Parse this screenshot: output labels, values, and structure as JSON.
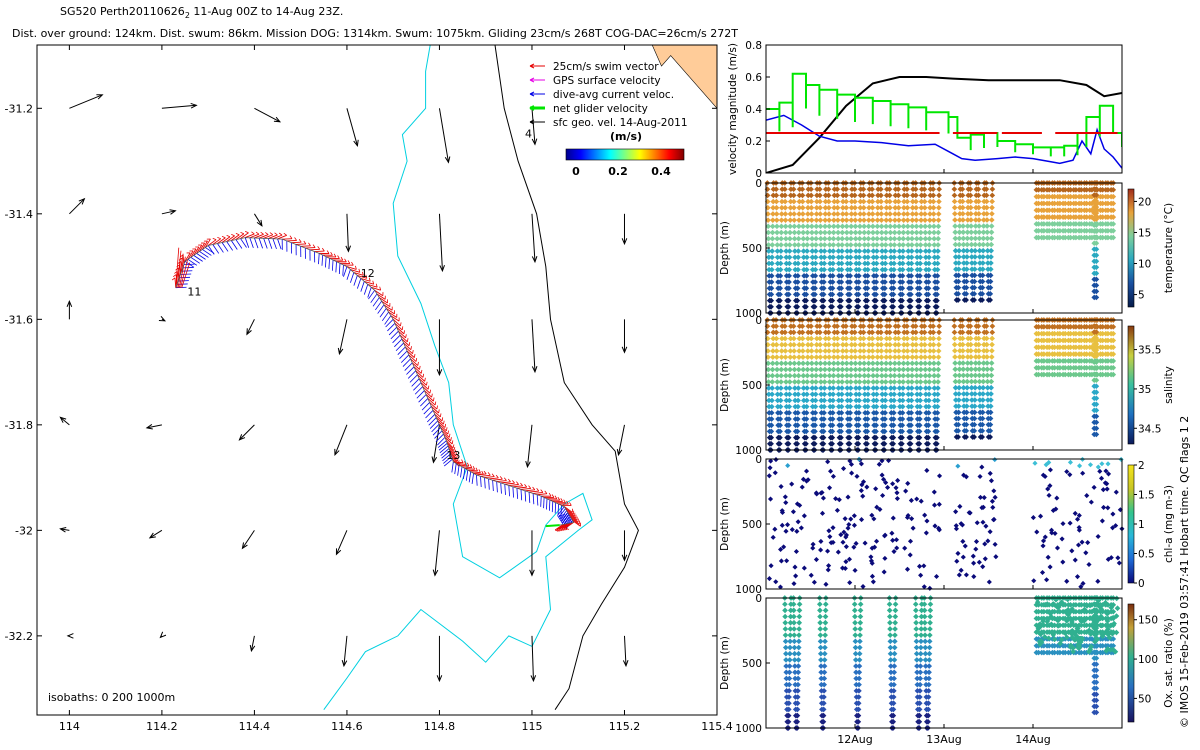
{
  "header": {
    "title": "SG520 Perth20110626",
    "title_sub": "2",
    "title_rest": " 11-Aug 00Z to 14-Aug 23Z.",
    "subtitle": "Dist. over ground: 124km. Dist. swum: 86km. Mission DOG: 1314km. Swum: 1075km. Gliding 23cm/s 268T COG-DAC=26cm/s 272T"
  },
  "side_label": "© IMOS 15-Feb-2019 03:57:41 Hobart time. QC flags 1  2",
  "colors": {
    "swim_vector": "#e60000",
    "gps_velocity": "#e600e6",
    "dive_avg": "#0000e6",
    "net_glider": "#00e600",
    "sfc_geo": "#000000",
    "isobath_200": "#00d0e0",
    "isobath_1000": "#000000",
    "land": "#ffcc99"
  },
  "chart_data": [
    {
      "type": "map",
      "x_ticks": [
        "114",
        "114.2",
        "114.4",
        "114.6",
        "114.8",
        "115",
        "115.2",
        "115.4"
      ],
      "y_ticks": [
        "-31.2",
        "-31.4",
        "-31.6",
        "-31.8",
        "-32",
        "-32.2"
      ],
      "xlim": [
        113.93,
        115.4
      ],
      "ylim": [
        -32.35,
        -31.08
      ],
      "legend": {
        "placement": "top-right",
        "entries": [
          "25cm/s swim vector",
          "GPS surface velocity",
          "dive-avg current veloc.",
          "net glider velocity",
          "sfc geo. vel. 14-Aug-2011"
        ]
      },
      "colorbar": {
        "label": "(m/s)",
        "ticks": [
          "0",
          "0.2",
          "0.4"
        ],
        "range": [
          0,
          0.5
        ]
      },
      "isobath_note": "isobaths: 0   200  1000m",
      "day_labels": [
        {
          "text": "11",
          "lon": 114.255,
          "lat": -31.555
        },
        {
          "text": "12",
          "lon": 114.63,
          "lat": -31.52
        },
        {
          "text": "13",
          "lon": 114.815,
          "lat": -31.865
        },
        {
          "text": "4",
          "lon": 114.985,
          "lat": -31.255
        }
      ],
      "track": [
        [
          114.23,
          -31.54
        ],
        [
          114.25,
          -31.49
        ],
        [
          114.3,
          -31.46
        ],
        [
          114.38,
          -31.445
        ],
        [
          114.46,
          -31.448
        ],
        [
          114.54,
          -31.475
        ],
        [
          114.6,
          -31.5
        ],
        [
          114.66,
          -31.545
        ],
        [
          114.7,
          -31.6
        ],
        [
          114.73,
          -31.66
        ],
        [
          114.76,
          -31.72
        ],
        [
          114.79,
          -31.78
        ],
        [
          114.815,
          -31.83
        ],
        [
          114.83,
          -31.87
        ],
        [
          114.88,
          -31.895
        ],
        [
          114.95,
          -31.915
        ],
        [
          115.02,
          -31.935
        ],
        [
          115.07,
          -31.955
        ],
        [
          115.09,
          -31.985
        ],
        [
          115.06,
          -31.99
        ]
      ],
      "geo_vectors": [
        {
          "lon": 114.0,
          "lat": -31.2,
          "u": 0.22,
          "v": 0.09
        },
        {
          "lon": 114.2,
          "lat": -31.2,
          "u": 0.23,
          "v": 0.02
        },
        {
          "lon": 114.4,
          "lat": -31.2,
          "u": 0.17,
          "v": -0.09
        },
        {
          "lon": 114.6,
          "lat": -31.2,
          "u": 0.07,
          "v": -0.25
        },
        {
          "lon": 114.8,
          "lat": -31.2,
          "u": 0.06,
          "v": -0.36
        },
        {
          "lon": 115.0,
          "lat": -31.2,
          "u": 0.02,
          "v": -0.24
        },
        {
          "lon": 114.0,
          "lat": -31.4,
          "u": 0.1,
          "v": 0.1
        },
        {
          "lon": 114.2,
          "lat": -31.4,
          "u": 0.09,
          "v": 0.02
        },
        {
          "lon": 114.4,
          "lat": -31.4,
          "u": 0.05,
          "v": -0.08
        },
        {
          "lon": 114.6,
          "lat": -31.4,
          "u": 0.01,
          "v": -0.25
        },
        {
          "lon": 114.8,
          "lat": -31.4,
          "u": 0.02,
          "v": -0.38
        },
        {
          "lon": 115.0,
          "lat": -31.4,
          "u": 0.02,
          "v": -0.32
        },
        {
          "lon": 115.2,
          "lat": -31.4,
          "u": 0.0,
          "v": -0.2
        },
        {
          "lon": 114.0,
          "lat": -31.6,
          "u": 0.0,
          "v": 0.12
        },
        {
          "lon": 114.2,
          "lat": -31.6,
          "u": 0.02,
          "v": -0.01
        },
        {
          "lon": 114.4,
          "lat": -31.6,
          "u": -0.05,
          "v": -0.1
        },
        {
          "lon": 114.6,
          "lat": -31.6,
          "u": -0.05,
          "v": -0.23
        },
        {
          "lon": 114.8,
          "lat": -31.6,
          "u": 0.0,
          "v": -0.37
        },
        {
          "lon": 115.0,
          "lat": -31.6,
          "u": 0.02,
          "v": -0.35
        },
        {
          "lon": 115.2,
          "lat": -31.6,
          "u": 0.0,
          "v": -0.22
        },
        {
          "lon": 114.0,
          "lat": -31.8,
          "u": -0.06,
          "v": 0.05
        },
        {
          "lon": 114.2,
          "lat": -31.8,
          "u": -0.1,
          "v": -0.02
        },
        {
          "lon": 114.4,
          "lat": -31.8,
          "u": -0.1,
          "v": -0.1
        },
        {
          "lon": 114.6,
          "lat": -31.8,
          "u": -0.08,
          "v": -0.2
        },
        {
          "lon": 114.8,
          "lat": -31.8,
          "u": -0.04,
          "v": -0.25
        },
        {
          "lon": 115.0,
          "lat": -31.8,
          "u": -0.03,
          "v": -0.28
        },
        {
          "lon": 115.2,
          "lat": -31.8,
          "u": -0.04,
          "v": -0.2
        },
        {
          "lon": 114.0,
          "lat": -32.0,
          "u": -0.06,
          "v": 0.01
        },
        {
          "lon": 114.2,
          "lat": -32.0,
          "u": -0.08,
          "v": -0.05
        },
        {
          "lon": 114.4,
          "lat": -32.0,
          "u": -0.08,
          "v": -0.12
        },
        {
          "lon": 114.6,
          "lat": -32.0,
          "u": -0.07,
          "v": -0.16
        },
        {
          "lon": 114.8,
          "lat": -32.0,
          "u": -0.03,
          "v": -0.3
        },
        {
          "lon": 115.0,
          "lat": -32.0,
          "u": 0.0,
          "v": -0.3
        },
        {
          "lon": 115.2,
          "lat": -32.0,
          "u": 0.0,
          "v": -0.2
        },
        {
          "lon": 114.0,
          "lat": -32.2,
          "u": -0.01,
          "v": 0.0
        },
        {
          "lon": 114.2,
          "lat": -32.2,
          "u": -0.01,
          "v": -0.01
        },
        {
          "lon": 114.4,
          "lat": -32.2,
          "u": -0.02,
          "v": -0.1
        },
        {
          "lon": 114.6,
          "lat": -32.2,
          "u": -0.02,
          "v": -0.2
        },
        {
          "lon": 114.8,
          "lat": -32.2,
          "u": 0.0,
          "v": -0.3
        },
        {
          "lon": 115.0,
          "lat": -32.2,
          "u": 0.01,
          "v": -0.3
        },
        {
          "lon": 115.2,
          "lat": -32.2,
          "u": 0.01,
          "v": -0.2
        }
      ],
      "isobath_200": [
        [
          [
            114.78,
            -31.08
          ],
          [
            114.77,
            -31.13
          ],
          [
            114.77,
            -31.2
          ],
          [
            114.72,
            -31.25
          ],
          [
            114.73,
            -31.3
          ],
          [
            114.7,
            -31.38
          ],
          [
            114.71,
            -31.48
          ],
          [
            114.76,
            -31.57
          ],
          [
            114.79,
            -31.65
          ],
          [
            114.82,
            -31.72
          ],
          [
            114.83,
            -31.8
          ],
          [
            114.86,
            -31.88
          ],
          [
            114.83,
            -31.95
          ],
          [
            114.85,
            -32.05
          ],
          [
            114.93,
            -32.09
          ],
          [
            115.01,
            -32.04
          ],
          [
            115.03,
            -31.99
          ],
          [
            115.07,
            -31.95
          ],
          [
            115.11,
            -31.93
          ],
          [
            115.13,
            -31.98
          ],
          [
            115.1,
            -32.0
          ],
          [
            115.03,
            -32.05
          ],
          [
            115.04,
            -32.15
          ],
          [
            115.0,
            -32.22
          ],
          [
            114.95,
            -32.2
          ],
          [
            114.9,
            -32.25
          ],
          [
            114.85,
            -32.21
          ],
          [
            114.76,
            -32.15
          ],
          [
            114.71,
            -32.2
          ],
          [
            114.64,
            -32.23
          ],
          [
            114.6,
            -32.28
          ],
          [
            114.55,
            -32.34
          ]
        ]
      ],
      "isobath_1000": [
        [
          [
            114.92,
            -31.08
          ],
          [
            114.94,
            -31.2
          ],
          [
            114.97,
            -31.3
          ],
          [
            115.01,
            -31.4
          ],
          [
            115.03,
            -31.5
          ],
          [
            115.04,
            -31.6
          ],
          [
            115.07,
            -31.72
          ],
          [
            115.13,
            -31.8
          ],
          [
            115.18,
            -31.85
          ],
          [
            115.2,
            -31.95
          ],
          [
            115.23,
            -32.0
          ],
          [
            115.2,
            -32.07
          ],
          [
            115.15,
            -32.14
          ],
          [
            115.11,
            -32.2
          ],
          [
            115.08,
            -32.3
          ],
          [
            115.05,
            -32.34
          ]
        ]
      ],
      "isobath_0": [
        [
          [
            115.26,
            -31.08
          ],
          [
            115.28,
            -31.12
          ],
          [
            115.3,
            -31.1
          ]
        ]
      ]
    },
    {
      "type": "line",
      "ylabel": "velocity magnitude (m/s)",
      "ylim": [
        0,
        0.8
      ],
      "y_ticks": [
        "0",
        "0.2",
        "0.4",
        "0.6",
        "0.8"
      ],
      "x_ticks": [
        "12Aug",
        "13Aug",
        "14Aug"
      ],
      "xlim_days": [
        11.0,
        15.0
      ],
      "series": [
        {
          "name": "sfc geo",
          "color": "#000000",
          "x": [
            11.0,
            11.3,
            11.6,
            11.9,
            12.2,
            12.5,
            12.8,
            13.1,
            13.5,
            13.9,
            14.3,
            14.6,
            14.8,
            15.0
          ],
          "y": [
            0.0,
            0.05,
            0.22,
            0.42,
            0.56,
            0.6,
            0.6,
            0.59,
            0.58,
            0.58,
            0.58,
            0.55,
            0.48,
            0.5
          ]
        },
        {
          "name": "dive-avg",
          "color": "#0000e6",
          "x": [
            11.0,
            11.2,
            11.4,
            11.6,
            11.8,
            12.0,
            12.3,
            12.6,
            12.9,
            13.1,
            13.2,
            13.35,
            13.6,
            13.8,
            14.0,
            14.2,
            14.3,
            14.45,
            14.55,
            14.65,
            14.72,
            14.8,
            14.9,
            15.0
          ],
          "y": [
            0.33,
            0.36,
            0.3,
            0.23,
            0.2,
            0.2,
            0.19,
            0.17,
            0.18,
            0.12,
            0.09,
            0.08,
            0.09,
            0.1,
            0.09,
            0.07,
            0.06,
            0.08,
            0.2,
            0.12,
            0.27,
            0.15,
            0.1,
            0.03
          ]
        },
        {
          "name": "net glider",
          "color": "#00e600",
          "x": [
            11.0,
            11.15,
            11.3,
            11.45,
            11.6,
            11.8,
            12.0,
            12.2,
            12.4,
            12.6,
            12.8,
            13.05,
            13.15,
            13.3,
            13.45,
            13.6,
            13.8,
            14.0,
            14.2,
            14.35,
            14.5,
            14.6,
            14.75,
            14.9,
            15.0
          ],
          "y": [
            0.4,
            0.44,
            0.62,
            0.55,
            0.52,
            0.49,
            0.47,
            0.45,
            0.43,
            0.41,
            0.38,
            0.35,
            0.22,
            0.24,
            0.25,
            0.2,
            0.18,
            0.16,
            0.16,
            0.17,
            0.25,
            0.35,
            0.42,
            0.25,
            0.2
          ]
        },
        {
          "name": "swim",
          "color": "#e60000",
          "x": [
            11.0,
            14.95
          ],
          "y": [
            0.25,
            0.25
          ]
        }
      ]
    },
    {
      "type": "scatter",
      "ylabel": "Depth (m)",
      "cbar_label": "temperature (°C)",
      "cbar_ticks": [
        "5",
        "10",
        "15",
        "20"
      ],
      "cbar_range": [
        3,
        22
      ],
      "ylim": [
        0,
        1000
      ],
      "y_ticks": [
        "0",
        "500",
        "1000"
      ]
    },
    {
      "type": "scatter",
      "ylabel": "Depth (m)",
      "cbar_label": "salinity",
      "cbar_ticks": [
        "34.5",
        "35",
        "35.5"
      ],
      "cbar_range": [
        34.3,
        35.8
      ],
      "ylim": [
        0,
        1000
      ],
      "y_ticks": [
        "0",
        "500",
        "1000"
      ]
    },
    {
      "type": "scatter",
      "ylabel": "Depth (m)",
      "cbar_label": "chl-a (mg m-3)",
      "cbar_ticks": [
        "0",
        "0.5",
        "1",
        "1.5",
        "2"
      ],
      "cbar_range": [
        0,
        2
      ],
      "ylim": [
        0,
        1000
      ],
      "y_ticks": [
        "0",
        "500",
        "1000"
      ]
    },
    {
      "type": "scatter",
      "ylabel": "Depth (m)",
      "cbar_label": "Ox. sat. ratio (%)",
      "cbar_ticks": [
        "50",
        "100",
        "150"
      ],
      "cbar_range": [
        20,
        170
      ],
      "ylim": [
        0,
        1000
      ],
      "y_ticks": [
        "0",
        "500",
        "1000"
      ],
      "x_ticks": [
        "12Aug",
        "13Aug",
        "14Aug"
      ]
    }
  ]
}
